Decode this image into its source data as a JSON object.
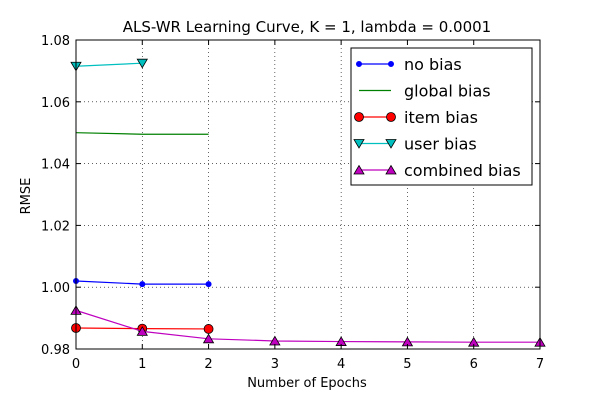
{
  "chart_data": {
    "type": "line",
    "title": "ALS-WR Learning Curve, K = 1, lambda = 0.0001",
    "xlabel": "Number of Epochs",
    "ylabel": "RMSE",
    "xlim": [
      0,
      7
    ],
    "ylim": [
      0.98,
      1.08
    ],
    "xticks": [
      "0",
      "1",
      "2",
      "3",
      "4",
      "5",
      "6",
      "7"
    ],
    "yticks": [
      "0.98",
      "1.00",
      "1.02",
      "1.04",
      "1.06",
      "1.08"
    ],
    "grid": true,
    "legend_position": "top-right",
    "series": [
      {
        "name": "no bias",
        "color": "#0000ff",
        "marker": "dot",
        "x": [
          0,
          1,
          2
        ],
        "y": [
          1.002,
          1.001,
          1.001
        ]
      },
      {
        "name": "global bias",
        "color": "#008000",
        "marker": "none",
        "x": [
          0,
          1,
          2
        ],
        "y": [
          1.05,
          1.0495,
          1.0495
        ]
      },
      {
        "name": "item bias",
        "color": "#ff0000",
        "marker": "circle",
        "x": [
          0,
          1,
          2
        ],
        "y": [
          0.9868,
          0.9866,
          0.9865
        ]
      },
      {
        "name": "user bias",
        "color": "#00bfbf",
        "marker": "triangle-down",
        "x": [
          0,
          1
        ],
        "y": [
          1.0715,
          1.0725
        ]
      },
      {
        "name": "combined bias",
        "color": "#bf00bf",
        "marker": "triangle-up",
        "x": [
          0,
          1,
          2,
          3,
          4,
          5,
          6,
          7
        ],
        "y": [
          0.9925,
          0.9857,
          0.9833,
          0.9826,
          0.9824,
          0.9823,
          0.9822,
          0.9822
        ]
      }
    ]
  }
}
